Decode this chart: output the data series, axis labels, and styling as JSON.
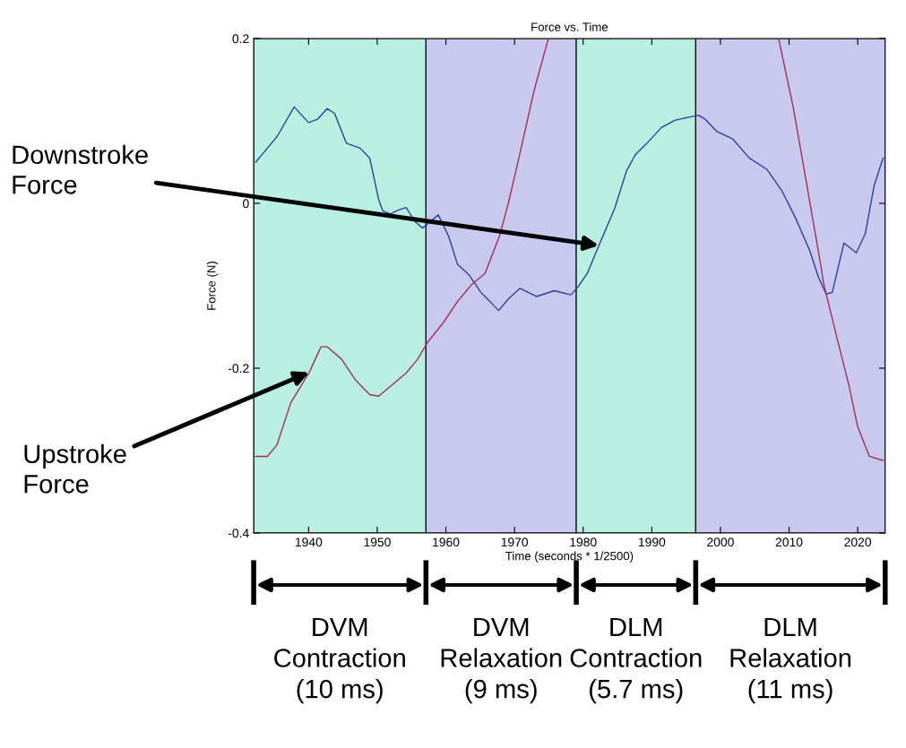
{
  "chart_data": {
    "type": "line",
    "title": "Force vs. Time",
    "xlabel": "Time (seconds * 1/2500)",
    "ylabel": "Force (N)",
    "xlim": [
      1932,
      2024
    ],
    "xticks": [
      1940,
      1950,
      1960,
      1970,
      1980,
      1990,
      2000,
      2010,
      2020
    ],
    "ylim": [
      -0.4,
      0.2
    ],
    "yticks": [
      -0.4,
      -0.2,
      0,
      0.2
    ],
    "grid": false,
    "legend": false,
    "marker": "none",
    "line_style": "solid",
    "series": [
      {
        "color": "#2c3f9c",
        "x": [
          1932.3,
          1934.0,
          1935.4,
          1937.9,
          1940.0,
          1941.3,
          1942.7,
          1943.8,
          1945.5,
          1947.5,
          1948.9,
          1950.2,
          1950.8,
          1951.9,
          1953.1,
          1954.2,
          1955.5,
          1956.6,
          1957.6,
          1958.9,
          1960.4,
          1961.7,
          1963.4,
          1965.1,
          1965.7,
          1967.7,
          1969.1,
          1970.8,
          1973.2,
          1975.8,
          1978.2,
          1979.2,
          1980.6,
          1982.3,
          1984.6,
          1986.3,
          1987.6,
          1989.3,
          1991.4,
          1993.4,
          1995.7,
          1996.8,
          1997.8,
          1999.5,
          2001.8,
          2004.2,
          2006.8,
          2008.9,
          2010.9,
          2013.0,
          2014.3,
          2015.4,
          2016.3,
          2018.0,
          2019.8,
          2021.1,
          2022.4,
          2023.7
        ],
        "values": [
          0.05,
          0.067,
          0.081,
          0.117,
          0.098,
          0.102,
          0.115,
          0.109,
          0.073,
          0.067,
          0.055,
          0.005,
          -0.009,
          -0.013,
          -0.008,
          -0.005,
          -0.022,
          -0.03,
          -0.023,
          -0.014,
          -0.04,
          -0.074,
          -0.087,
          -0.108,
          -0.113,
          -0.13,
          -0.116,
          -0.103,
          -0.113,
          -0.106,
          -0.111,
          -0.102,
          -0.085,
          -0.051,
          -0.006,
          0.039,
          0.059,
          0.073,
          0.092,
          0.101,
          0.105,
          0.107,
          0.102,
          0.087,
          0.078,
          0.055,
          0.041,
          0.016,
          -0.017,
          -0.057,
          -0.09,
          -0.11,
          -0.108,
          -0.048,
          -0.06,
          -0.037,
          0.022,
          0.055
        ]
      },
      {
        "color": "#a0304f",
        "x": [
          1932.3,
          1934.0,
          1935.4,
          1937.4,
          1940.1,
          1941.8,
          1942.7,
          1944.8,
          1946.8,
          1948.9,
          1950.2,
          1952.2,
          1954.2,
          1955.9,
          1957.3,
          1959.7,
          1961.7,
          1963.7,
          1965.7,
          1967.8,
          1969.1,
          1970.8,
          1972.8,
          1974.9,
          1990.0,
          2008.5,
          2010.6,
          2012.6,
          2014.7,
          2015.0,
          2017.0,
          2018.7,
          2020.0,
          2021.7,
          2023.7
        ],
        "values": [
          -0.307,
          -0.307,
          -0.293,
          -0.242,
          -0.205,
          -0.174,
          -0.174,
          -0.189,
          -0.214,
          -0.232,
          -0.234,
          -0.22,
          -0.206,
          -0.189,
          -0.169,
          -0.144,
          -0.119,
          -0.099,
          -0.085,
          -0.04,
          0.0,
          0.061,
          0.135,
          0.199,
          null,
          0.199,
          0.117,
          0.022,
          -0.079,
          -0.096,
          -0.164,
          -0.22,
          -0.271,
          -0.307,
          -0.312
        ]
      }
    ],
    "bands": [
      {
        "axis": "x",
        "from": 1932,
        "to": 1957.1,
        "color": "#b9efe1"
      },
      {
        "axis": "x",
        "from": 1957.1,
        "to": 1979.0,
        "color": "#c9c8ef"
      },
      {
        "axis": "x",
        "from": 1979.0,
        "to": 1996.4,
        "color": "#b9efe1"
      },
      {
        "axis": "x",
        "from": 1996.4,
        "to": 2024,
        "color": "#c9c8ef"
      }
    ],
    "annotations": [
      {
        "text": "Downstroke\nForce",
        "x": 1982.3,
        "y": -0.051
      },
      {
        "text": "Upstroke\nForce",
        "x": 1940.1,
        "y": -0.205
      },
      "DVM\nContraction\n(10 ms)",
      "DVM\nRelaxation\n(9 ms)",
      "DLM\nContraction\n(5.7 ms)",
      "DLM\nRelaxation\n(11 ms)"
    ]
  }
}
